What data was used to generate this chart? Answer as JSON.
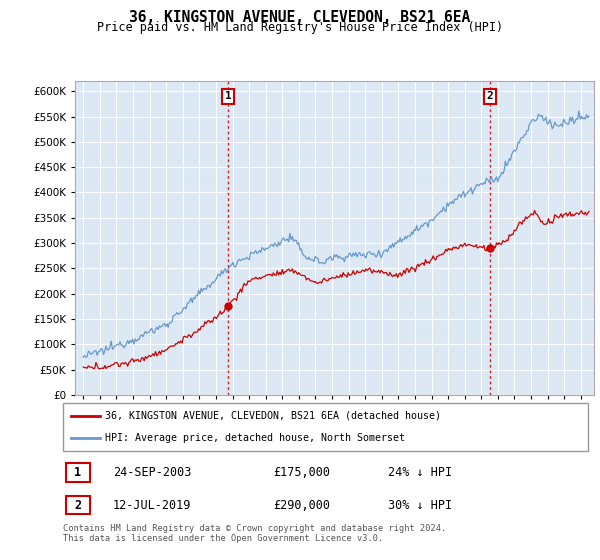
{
  "title": "36, KINGSTON AVENUE, CLEVEDON, BS21 6EA",
  "subtitle": "Price paid vs. HM Land Registry's House Price Index (HPI)",
  "ylim": [
    0,
    620000
  ],
  "xlim_start": 1994.5,
  "xlim_end": 2025.8,
  "sale1_x": 2003.73,
  "sale1_y": 175000,
  "sale1_label": "1",
  "sale1_date": "24-SEP-2003",
  "sale1_price": "£175,000",
  "sale1_hpi": "24% ↓ HPI",
  "sale2_x": 2019.54,
  "sale2_y": 290000,
  "sale2_label": "2",
  "sale2_date": "12-JUL-2019",
  "sale2_price": "£290,000",
  "sale2_hpi": "30% ↓ HPI",
  "line1_color": "#cc0000",
  "line2_color": "#6699cc",
  "legend1_label": "36, KINGSTON AVENUE, CLEVEDON, BS21 6EA (detached house)",
  "legend2_label": "HPI: Average price, detached house, North Somerset",
  "footer": "Contains HM Land Registry data © Crown copyright and database right 2024.\nThis data is licensed under the Open Government Licence v3.0.",
  "plot_bg_color": "#dce9f5",
  "grid_color": "#ffffff"
}
